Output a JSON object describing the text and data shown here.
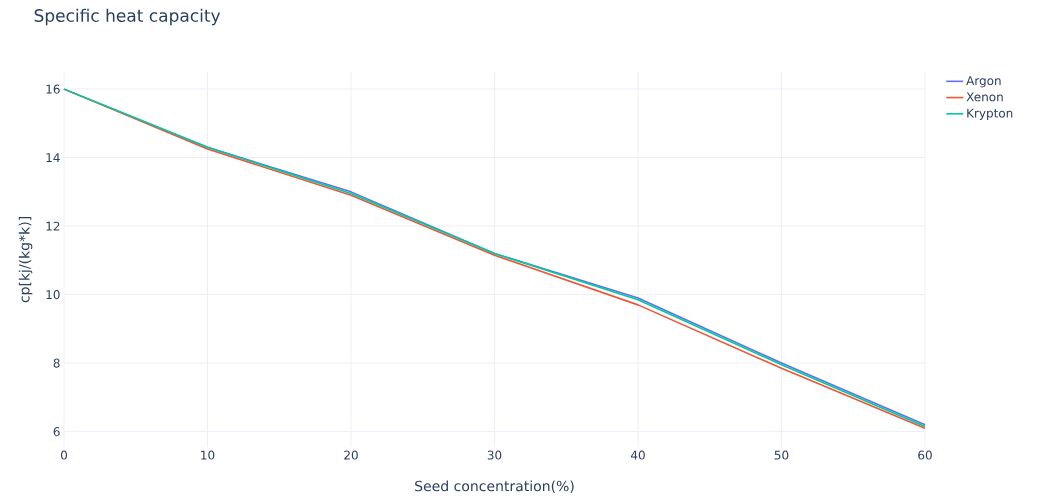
{
  "chart_data": {
    "type": "line",
    "title": "Specific heat capacity",
    "xlabel": "Seed concentration(%)",
    "ylabel": "cp[kj/(kg*k)]",
    "x": [
      0,
      10,
      20,
      30,
      40,
      50,
      60
    ],
    "series": [
      {
        "name": "Argon",
        "color": "#636efa",
        "values": [
          16,
          14.3,
          13.0,
          11.2,
          9.9,
          8.0,
          6.2
        ]
      },
      {
        "name": "Xenon",
        "color": "#ef553b",
        "values": [
          16,
          14.25,
          12.9,
          11.15,
          9.7,
          7.85,
          6.1
        ]
      },
      {
        "name": "Krypton",
        "color": "#00cc96",
        "values": [
          16,
          14.3,
          12.95,
          11.2,
          9.85,
          7.95,
          6.15
        ]
      }
    ],
    "xlim": [
      0,
      60
    ],
    "ylim": [
      5.55,
      16.5
    ],
    "xticks": [
      0,
      10,
      20,
      30,
      40,
      50,
      60
    ],
    "yticks": [
      6,
      8,
      10,
      12,
      14,
      16
    ],
    "grid": true,
    "legend": "top right",
    "line_style": "solid",
    "marker": "none"
  }
}
